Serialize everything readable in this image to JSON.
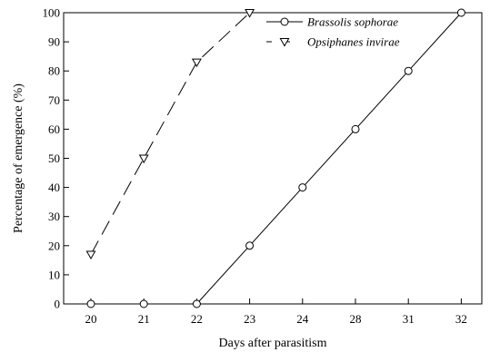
{
  "chart_data": {
    "type": "line",
    "xlabel": "Days after parasitism",
    "ylabel": "Percentage of emergence  (%)",
    "categories": [
      "20",
      "21",
      "22",
      "23",
      "24",
      "28",
      "31",
      "32"
    ],
    "ylim": [
      0,
      100
    ],
    "yticks": [
      0,
      10,
      20,
      30,
      40,
      50,
      60,
      70,
      80,
      90,
      100
    ],
    "grid": false,
    "legend_position": "top-right",
    "series": [
      {
        "name": "Brassolis sophorae",
        "marker": "circle",
        "line_style": "solid",
        "color": "#000000",
        "points": [
          {
            "x": "20",
            "y": 0
          },
          {
            "x": "21",
            "y": 0
          },
          {
            "x": "22",
            "y": 0
          },
          {
            "x": "23",
            "y": 20
          },
          {
            "x": "24",
            "y": 40
          },
          {
            "x": "28",
            "y": 60
          },
          {
            "x": "31",
            "y": 80
          },
          {
            "x": "32",
            "y": 100
          }
        ]
      },
      {
        "name": "Opsiphanes invirae",
        "marker": "triangle-down",
        "line_style": "dashed",
        "color": "#000000",
        "points": [
          {
            "x": "20",
            "y": 17
          },
          {
            "x": "21",
            "y": 50
          },
          {
            "x": "22",
            "y": 83
          },
          {
            "x": "23",
            "y": 100
          }
        ]
      }
    ]
  }
}
